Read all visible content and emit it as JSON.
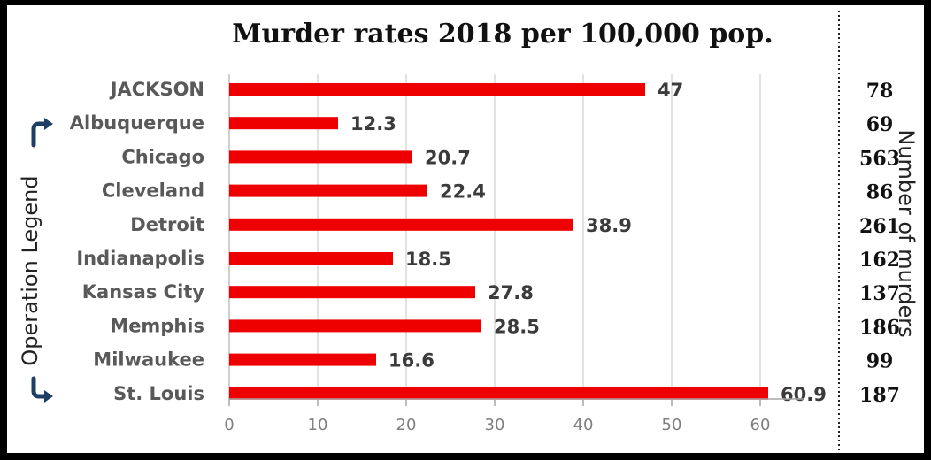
{
  "chart_data": {
    "type": "bar",
    "orientation": "horizontal",
    "title": "Murder rates 2018 per 100,000 pop.",
    "categories": [
      "JACKSON",
      "Albuquerque",
      "Chicago",
      "Cleveland",
      "Detroit",
      "Indianapolis",
      "Kansas City",
      "Memphis",
      "Milwaukee",
      "St. Louis"
    ],
    "values": [
      47,
      12.3,
      20.7,
      22.4,
      38.9,
      18.5,
      27.8,
      28.5,
      16.6,
      60.9
    ],
    "value_labels": [
      "47",
      "12.3",
      "20.7",
      "22.4",
      "38.9",
      "18.5",
      "27.8",
      "28.5",
      "16.6",
      "60.9"
    ],
    "xlim": [
      0,
      65
    ],
    "xticks": [
      "0",
      "10",
      "20",
      "30",
      "40",
      "50",
      "60"
    ],
    "grid": true,
    "bar_color": "#ee0000",
    "left_label": "Operation Legend",
    "right_label": "Number of murders",
    "murder_counts": [
      "78",
      "69",
      "563",
      "86",
      "261",
      "162",
      "137",
      "186",
      "99",
      "187"
    ],
    "icons": [
      "arrow-up-right-icon",
      "arrow-down-right-icon"
    ],
    "icon_color": "#1f3e66"
  }
}
